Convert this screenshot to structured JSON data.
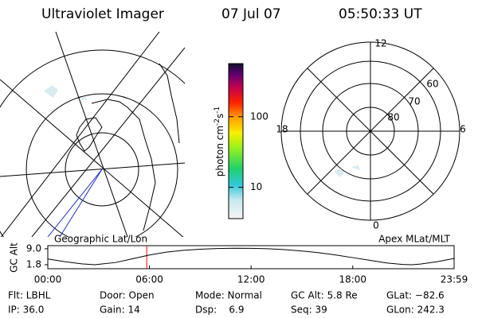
{
  "header": {
    "title": "Ultraviolet Imager",
    "date": "07 Jul 07",
    "time": "05:50:33 UT"
  },
  "colorbar": {
    "label": "photon cm",
    "exp1": "-2",
    "unit2": "s",
    "exp2": "-1",
    "log": true,
    "range": [
      3.6,
      565
    ],
    "ticks": [
      100,
      10
    ]
  },
  "map_labels": {
    "left": "Geographic Lat/Lon",
    "right": "Apex MLat/MLT"
  },
  "polar_labels": {
    "top": "12",
    "left": "18",
    "right": "6",
    "bottom": "0",
    "lat1": "60",
    "lat2": "70",
    "lat3": "80"
  },
  "chart_data": {
    "type": "line",
    "ylabel": "GC Alt",
    "color": "#000000",
    "cursor_color": "#ff0000",
    "cursor_x": 5.84,
    "x": [
      0,
      1,
      2,
      2.8,
      4,
      5,
      6,
      7,
      8,
      9,
      10,
      11,
      12,
      13,
      14,
      15,
      16,
      17,
      18,
      19,
      20,
      21,
      21.5,
      22,
      23,
      23.983
    ],
    "values": [
      4.4,
      3.2,
      2.2,
      1.8,
      2.8,
      4.5,
      6.2,
      7.5,
      8.3,
      8.8,
      9.1,
      9.25,
      9.2,
      9.0,
      8.6,
      8.0,
      7.2,
      6.2,
      5.0,
      3.8,
      2.6,
      1.9,
      1.8,
      2.1,
      3.2,
      4.6
    ],
    "xlim": [
      0,
      23.983
    ],
    "ylim": [
      0,
      10.4
    ],
    "xticks": [
      {
        "value": 0,
        "label": "00:00"
      },
      {
        "value": 6,
        "label": "06:00"
      },
      {
        "value": 12,
        "label": "12:00"
      },
      {
        "value": 18,
        "label": "18:00"
      },
      {
        "value": 23.983,
        "label": "23:59"
      }
    ],
    "yticks": [
      {
        "value": 9,
        "label": "9.0"
      },
      1.8
    ]
  },
  "footer": {
    "row1": [
      "Flt: LBHL",
      "Door: Open",
      "Mode: Normal",
      "GC Alt: 5.8 Re",
      "GLat: −82.6"
    ],
    "row2": [
      "IP: 36.0",
      "Gain: 14",
      "Dsp:    6.9",
      "Seq: 39",
      "GLon: 242.3"
    ]
  }
}
